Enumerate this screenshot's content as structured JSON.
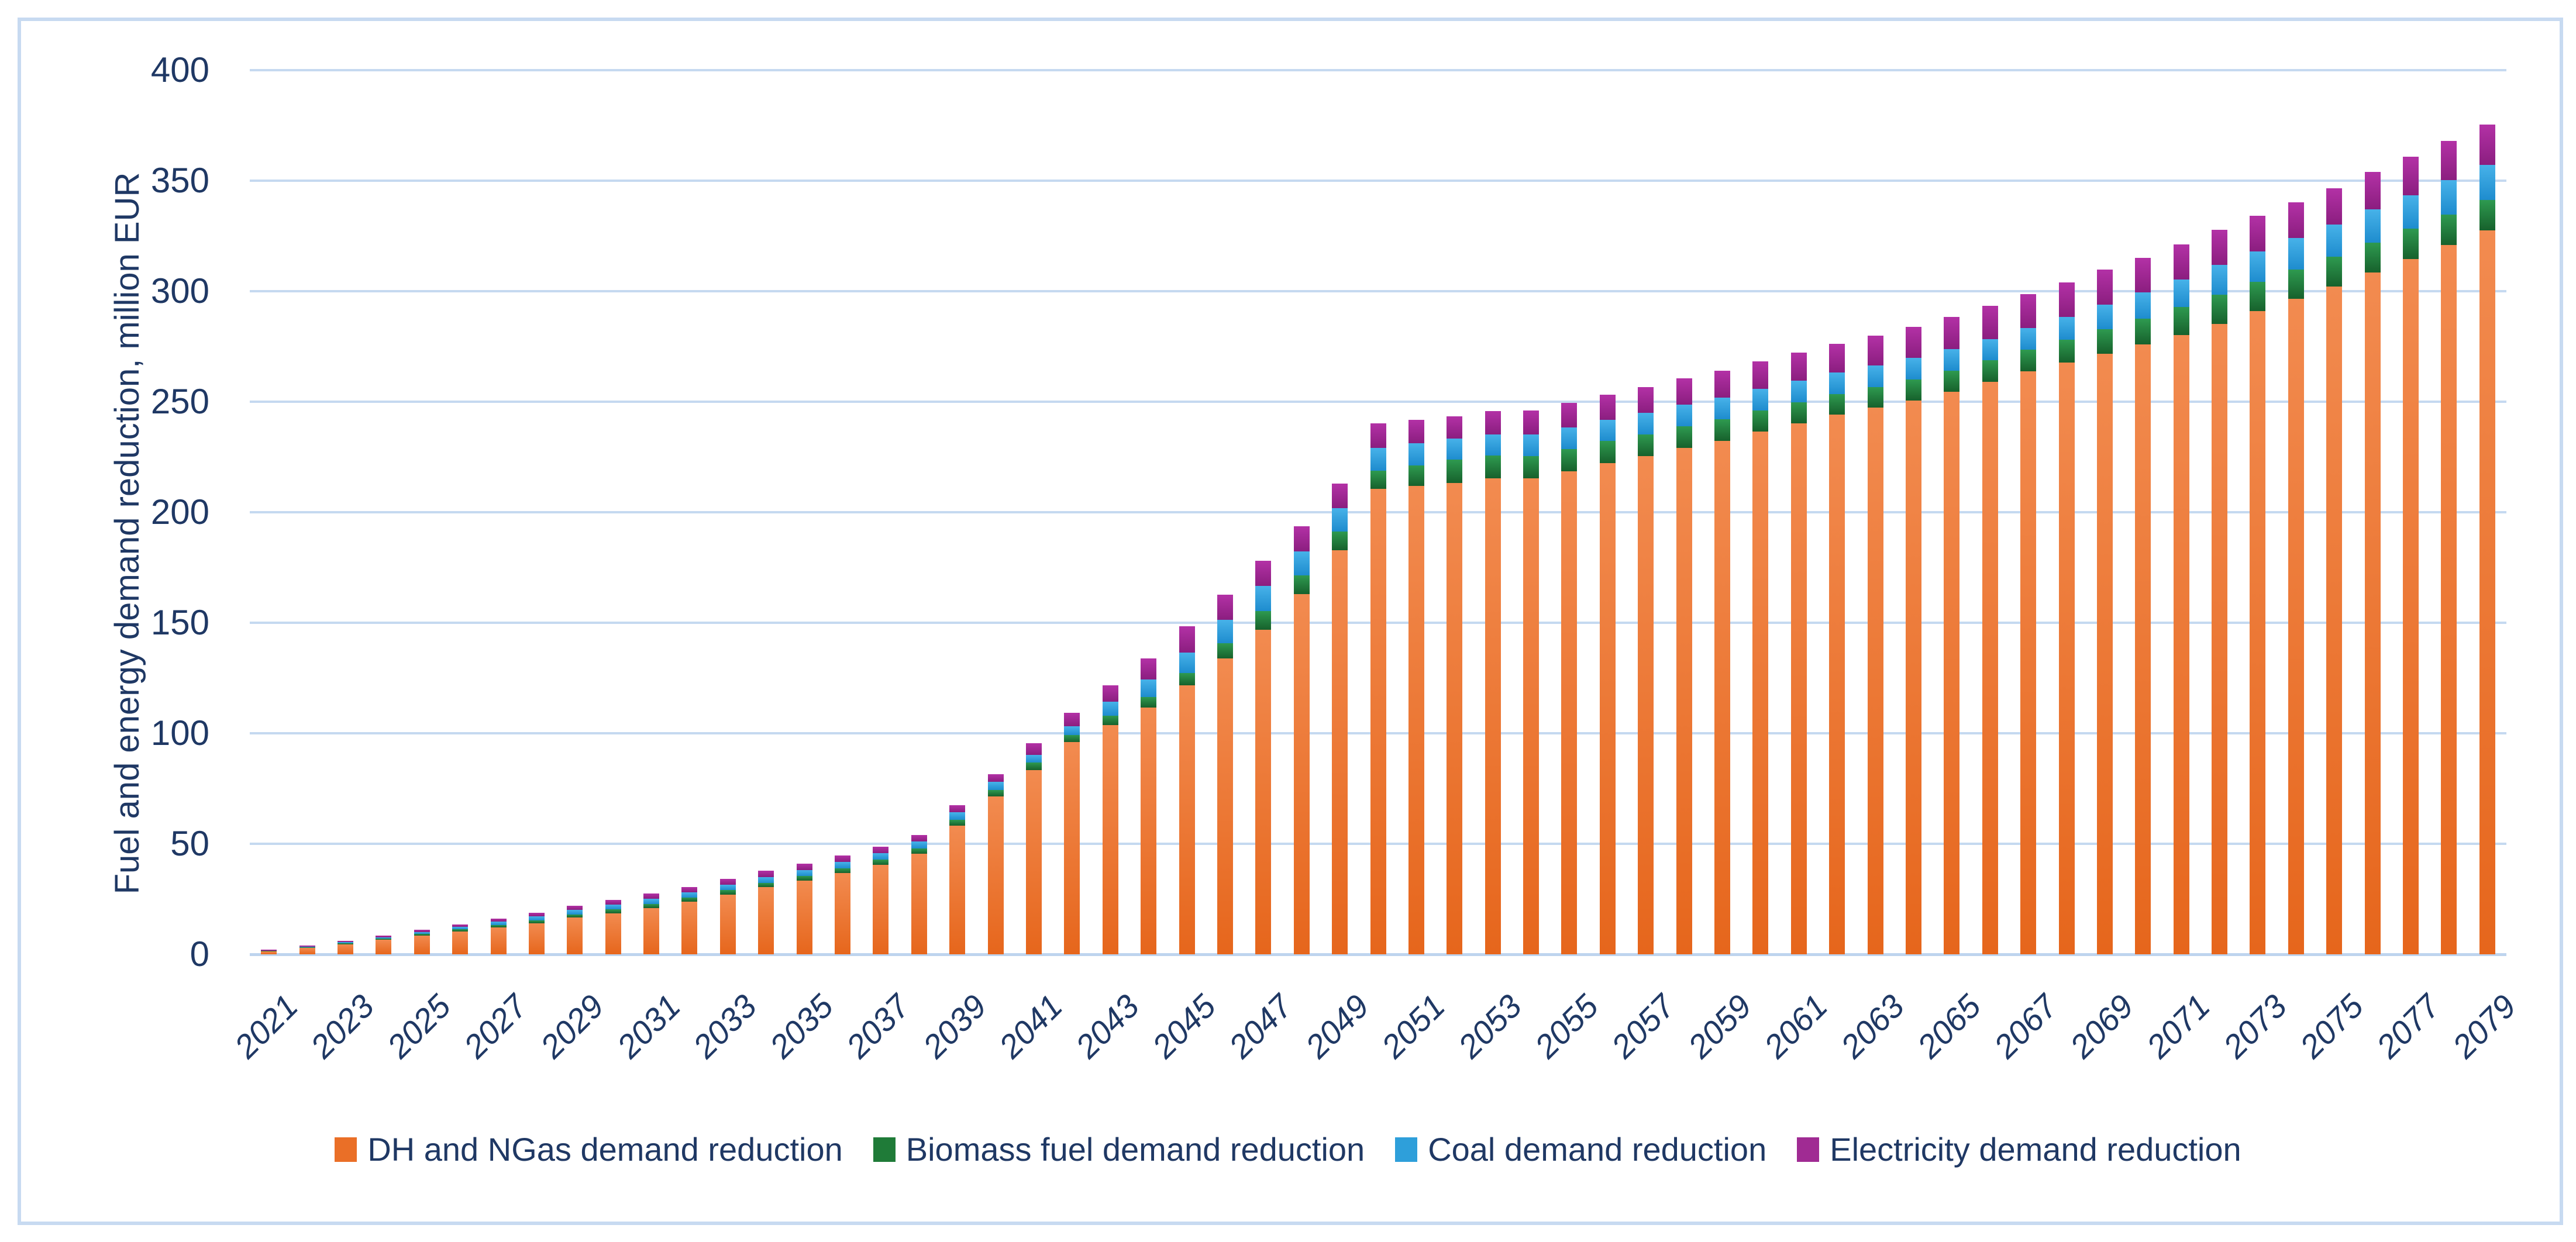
{
  "chart_data": {
    "type": "bar",
    "stacked": true,
    "title": "",
    "xlabel": "",
    "ylabel": "Fuel and energy demand reduction, million EUR",
    "ylim": [
      0,
      400
    ],
    "yticks": [
      0,
      50,
      100,
      150,
      200,
      250,
      300,
      350,
      400
    ],
    "grid": true,
    "legend_position": "bottom",
    "x_tick_labels_shown": "every second year (odd years 2021-2079), rotated 45 degrees",
    "categories": [
      2021,
      2022,
      2023,
      2024,
      2025,
      2026,
      2027,
      2028,
      2029,
      2030,
      2031,
      2032,
      2033,
      2034,
      2035,
      2036,
      2037,
      2038,
      2039,
      2040,
      2041,
      2042,
      2043,
      2044,
      2045,
      2046,
      2047,
      2048,
      2049,
      2050,
      2051,
      2052,
      2053,
      2054,
      2055,
      2056,
      2057,
      2058,
      2059,
      2060,
      2061,
      2062,
      2063,
      2064,
      2065,
      2066,
      2067,
      2068,
      2069,
      2070,
      2071,
      2072,
      2073,
      2074,
      2075,
      2076,
      2077,
      2078,
      2079
    ],
    "series": [
      {
        "name": "DH and NGas demand reduction",
        "color": "#EA6F27",
        "color_light": "#F28B50",
        "color_dark": "#E6661C",
        "values": [
          1.3,
          2.9,
          4.6,
          6.6,
          8.5,
          10.4,
          12.2,
          14.1,
          16.6,
          18.6,
          21.0,
          23.7,
          27.1,
          30.3,
          33.3,
          36.7,
          40.4,
          45.4,
          58.2,
          71.3,
          83.4,
          95.9,
          103.8,
          111.6,
          121.6,
          133.8,
          146.9,
          163.0,
          182.8,
          210.5,
          211.8,
          213.3,
          215.3,
          215.3,
          218.6,
          222.2,
          225.4,
          229.1,
          232.4,
          236.4,
          240.3,
          244.1,
          247.3,
          250.6,
          254.5,
          259.1,
          263.8,
          267.6,
          271.8,
          275.8,
          280.2,
          285.2,
          291.0,
          296.5,
          302.2,
          308.5,
          314.6,
          320.8,
          327.4
        ]
      },
      {
        "name": "Biomass fuel demand reduction",
        "color": "#1F7B38",
        "color_light": "#2E9A50",
        "color_dark": "#17612C",
        "values": [
          0.2,
          0.3,
          0.4,
          0.5,
          0.7,
          0.9,
          1.1,
          1.3,
          1.5,
          1.7,
          1.8,
          1.9,
          2.0,
          2.1,
          2.2,
          2.3,
          2.4,
          2.5,
          2.7,
          3.0,
          3.4,
          3.3,
          4.2,
          4.9,
          5.6,
          7.0,
          8.4,
          8.4,
          8.4,
          8.4,
          9.4,
          10.4,
          10.3,
          10.2,
          10.1,
          10.0,
          9.9,
          9.8,
          9.7,
          9.6,
          9.5,
          9.3,
          9.4,
          9.5,
          9.6,
          9.6,
          9.7,
          10.4,
          11.1,
          11.8,
          12.6,
          13.3,
          13.3,
          13.3,
          13.3,
          13.5,
          13.6,
          13.8,
          13.9
        ]
      },
      {
        "name": "Coal demand reduction",
        "color": "#2E9FDA",
        "color_light": "#47B2E9",
        "color_dark": "#1E8CCE",
        "values": [
          0.2,
          0.3,
          0.5,
          0.6,
          0.8,
          1.1,
          1.4,
          1.7,
          1.9,
          2.1,
          2.3,
          2.4,
          2.5,
          2.6,
          2.7,
          2.8,
          2.9,
          3.1,
          3.3,
          3.7,
          3.3,
          4.1,
          6.2,
          7.8,
          9.4,
          10.4,
          11.3,
          10.9,
          10.6,
          10.3,
          10.0,
          9.7,
          9.7,
          9.7,
          9.7,
          9.7,
          9.7,
          9.7,
          9.7,
          9.7,
          9.7,
          9.7,
          9.7,
          9.7,
          9.7,
          9.7,
          9.7,
          10.4,
          11.1,
          11.8,
          12.6,
          13.3,
          13.7,
          14.2,
          14.6,
          15.0,
          15.3,
          15.6,
          15.8
        ]
      },
      {
        "name": "Electricity demand reduction",
        "color": "#A02B93",
        "color_light": "#B331A6",
        "color_dark": "#8B1E7F",
        "values": [
          0.5,
          0.6,
          0.7,
          0.8,
          1.0,
          1.2,
          1.5,
          1.7,
          2.0,
          2.2,
          2.4,
          2.5,
          2.6,
          2.7,
          2.8,
          2.9,
          3.0,
          3.1,
          3.3,
          3.6,
          5.3,
          5.9,
          7.5,
          9.6,
          11.8,
          11.6,
          11.5,
          11.4,
          11.2,
          11.1,
          10.6,
          10.1,
          10.4,
          10.7,
          11.0,
          11.3,
          11.6,
          11.9,
          12.2,
          12.5,
          12.8,
          13.0,
          13.5,
          14.0,
          14.5,
          15.0,
          15.5,
          15.6,
          15.7,
          15.8,
          15.8,
          15.9,
          16.1,
          16.3,
          16.5,
          17.0,
          17.4,
          17.9,
          18.3
        ]
      }
    ]
  },
  "colors": {
    "text": "#1f3864",
    "gridline": "#c5d9f0",
    "frame_border": "#c7daf1",
    "background": "#ffffff"
  }
}
